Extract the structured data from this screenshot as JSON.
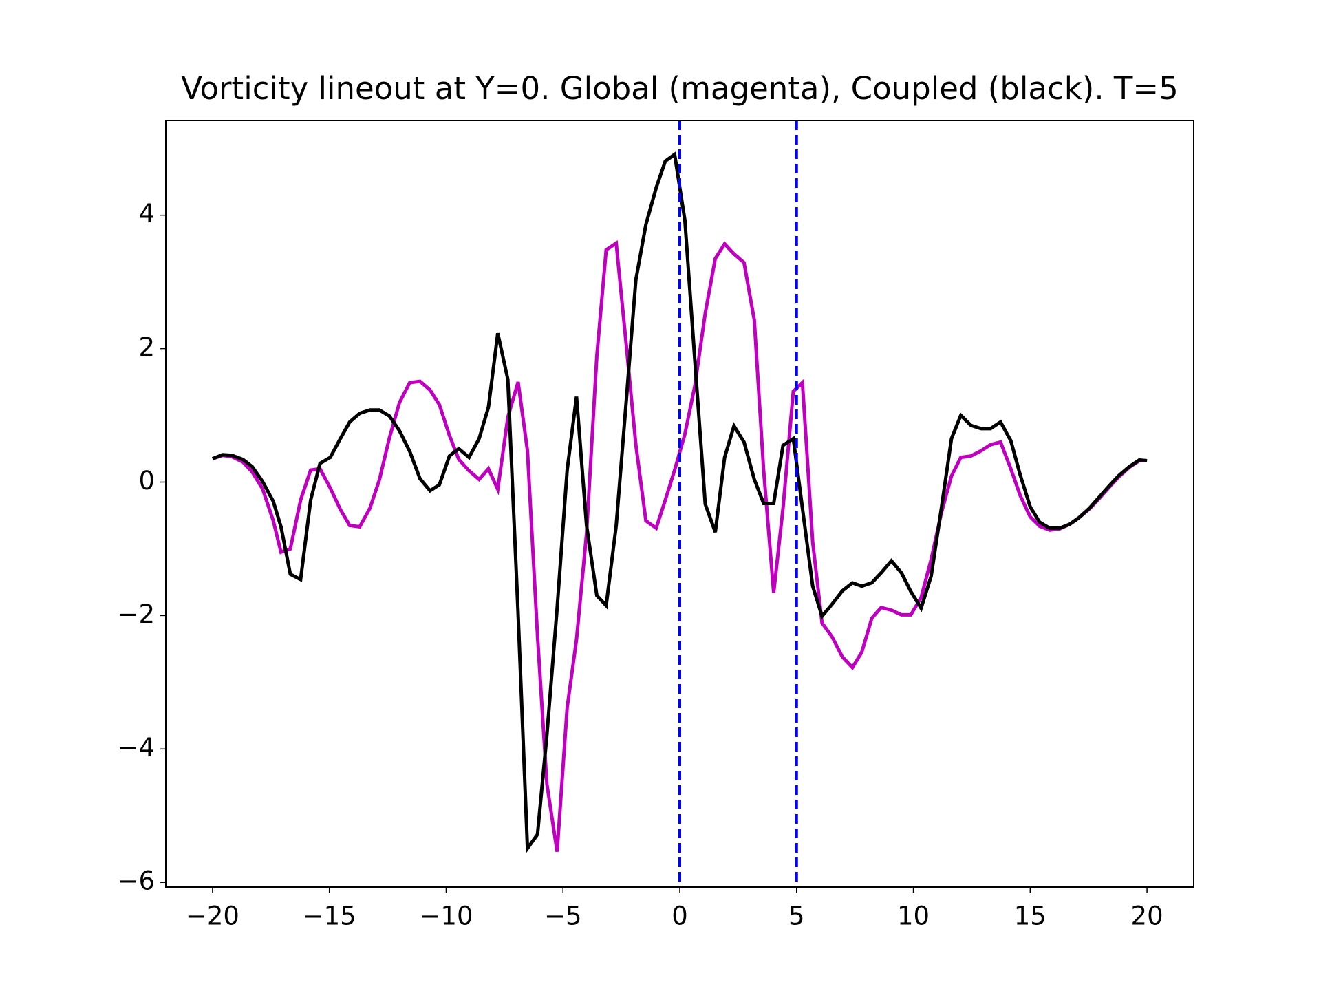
{
  "chart_data": {
    "type": "line",
    "title": "Vorticity lineout at Y=0. Global (magenta), Coupled (black). T=5",
    "x": [
      -20,
      -19.57,
      -19.17,
      -18.7,
      -18.3,
      -17.86,
      -17.4,
      -17.07,
      -16.67,
      -16.23,
      -15.8,
      -15.4,
      -14.96,
      -14.53,
      -14.13,
      -13.7,
      -13.26,
      -12.86,
      -12.43,
      -12.0,
      -11.56,
      -11.12,
      -10.69,
      -10.29,
      -9.86,
      -9.46,
      -9.02,
      -8.59,
      -8.19,
      -7.79,
      -7.36,
      -6.92,
      -6.52,
      -6.09,
      -5.69,
      -5.25,
      -4.82,
      -4.42,
      -3.99,
      -3.55,
      -3.15,
      -2.72,
      -2.28,
      -1.88,
      -1.45,
      -1.01,
      -0.62,
      -0.22,
      0.22,
      0.65,
      1.09,
      1.52,
      1.92,
      2.32,
      2.75,
      3.19,
      3.59,
      4.02,
      4.42,
      4.86,
      5.25,
      5.69,
      6.09,
      6.52,
      6.96,
      7.39,
      7.79,
      8.22,
      8.62,
      9.06,
      9.49,
      9.89,
      10.33,
      10.76,
      11.2,
      11.63,
      12.03,
      12.46,
      12.9,
      13.3,
      13.73,
      14.17,
      14.57,
      15.0,
      15.4,
      15.83,
      16.27,
      16.7,
      17.1,
      17.54,
      17.97,
      18.4,
      18.8,
      19.24,
      19.67,
      20
    ],
    "series": [
      {
        "color": "#bf00bf",
        "values": [
          0.35,
          0.4,
          0.38,
          0.3,
          0.15,
          -0.1,
          -0.58,
          -1.05,
          -1.0,
          -0.27,
          0.18,
          0.2,
          -0.09,
          -0.41,
          -0.65,
          -0.67,
          -0.39,
          0.03,
          0.66,
          1.19,
          1.49,
          1.51,
          1.38,
          1.16,
          0.7,
          0.34,
          0.17,
          0.04,
          0.2,
          -0.11,
          0.97,
          1.5,
          0.47,
          -2.3,
          -4.52,
          -5.54,
          -3.38,
          -2.36,
          -0.77,
          1.89,
          3.48,
          3.58,
          2.02,
          0.56,
          -0.58,
          -0.69,
          -0.27,
          0.18,
          0.72,
          1.45,
          2.53,
          3.35,
          3.57,
          3.42,
          3.29,
          2.43,
          0.18,
          -1.66,
          -0.39,
          1.36,
          1.49,
          -0.9,
          -2.11,
          -2.32,
          -2.62,
          -2.78,
          -2.55,
          -2.04,
          -1.88,
          -1.92,
          -1.99,
          -1.99,
          -1.73,
          -1.16,
          -0.46,
          0.09,
          0.37,
          0.39,
          0.47,
          0.56,
          0.6,
          0.2,
          -0.2,
          -0.52,
          -0.66,
          -0.72,
          -0.7,
          -0.63,
          -0.53,
          -0.4,
          -0.24,
          -0.07,
          0.08,
          0.22,
          0.32,
          0.32
        ]
      },
      {
        "color": "#000000",
        "values": [
          0.35,
          0.41,
          0.4,
          0.34,
          0.23,
          0.01,
          -0.29,
          -0.67,
          -1.38,
          -1.46,
          -0.27,
          0.28,
          0.37,
          0.65,
          0.9,
          1.03,
          1.08,
          1.08,
          0.99,
          0.77,
          0.46,
          0.05,
          -0.13,
          -0.04,
          0.39,
          0.5,
          0.37,
          0.65,
          1.12,
          2.23,
          1.54,
          -1.97,
          -5.49,
          -5.28,
          -3.8,
          -1.89,
          0.18,
          1.28,
          -0.65,
          -1.7,
          -1.85,
          -0.65,
          1.26,
          3.03,
          3.86,
          4.41,
          4.81,
          4.91,
          3.92,
          1.8,
          -0.33,
          -0.75,
          0.37,
          0.84,
          0.6,
          0.04,
          -0.32,
          -0.32,
          0.55,
          0.65,
          -0.39,
          -1.56,
          -2.01,
          -1.83,
          -1.63,
          -1.51,
          -1.56,
          -1.51,
          -1.36,
          -1.18,
          -1.36,
          -1.64,
          -1.89,
          -1.41,
          -0.39,
          0.65,
          1.0,
          0.85,
          0.8,
          0.8,
          0.9,
          0.62,
          0.11,
          -0.37,
          -0.6,
          -0.69,
          -0.69,
          -0.63,
          -0.53,
          -0.39,
          -0.22,
          -0.05,
          0.1,
          0.23,
          0.33,
          0.32
        ]
      }
    ],
    "vlines": {
      "values": [
        0,
        5
      ],
      "color": "#0000ff"
    },
    "xlim": [
      -22,
      22
    ],
    "ylim": [
      -6.07,
      5.42
    ],
    "xticks": [
      {
        "value": -20,
        "label": "−20"
      },
      {
        "value": -15,
        "label": "−15"
      },
      {
        "value": -10,
        "label": "−10"
      },
      {
        "value": -5,
        "label": "−5"
      },
      0,
      5,
      10,
      15,
      20
    ],
    "yticks": [
      {
        "value": -6,
        "label": "−6"
      },
      {
        "value": -4,
        "label": "−4"
      },
      {
        "value": -2,
        "label": "−2"
      },
      0,
      2,
      4
    ],
    "grid": false
  }
}
